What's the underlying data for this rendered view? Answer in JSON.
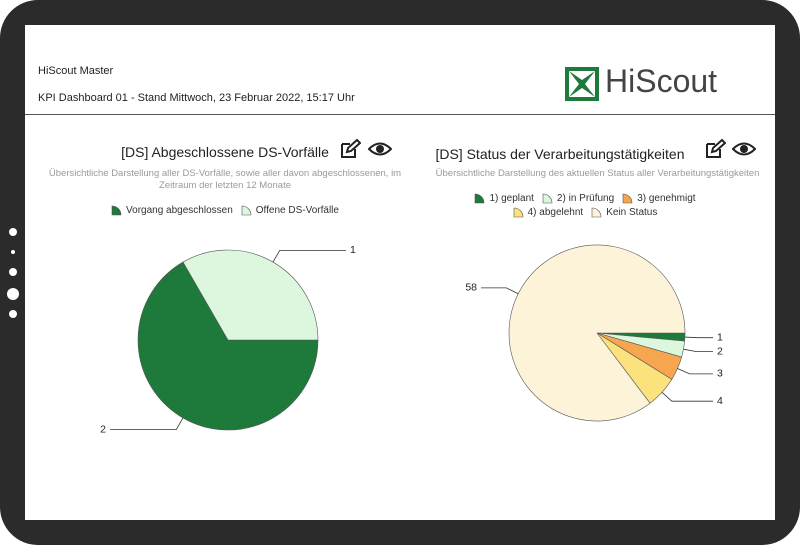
{
  "header": {
    "app": "HiScout Master",
    "subtitle": "KPI Dashboard 01 - Stand Mittwoch, 23 Februar 2022, 15:17 Uhr",
    "logo": "HiScout"
  },
  "chart_data": [
    {
      "type": "pie",
      "title": "[DS] Abgeschlossene DS-Vorfälle",
      "subtitle": "Übersichtliche Darstellung aller DS-Vorfälle, sowie aller davon abgeschlossenen, im Zeitraum der letzten 12 Monate",
      "categories": [
        "Vorgang abgeschlossen",
        "Offene DS-Vorfälle"
      ],
      "values": [
        2,
        1
      ],
      "colors": [
        "#1d7a3b",
        "#dcf7de"
      ]
    },
    {
      "type": "pie",
      "title": "[DS] Status der Verarbeitungstätigkeiten",
      "subtitle": "Übersichtliche Darstellung des aktuellen Status aller Verarbeitungstätigkeiten",
      "categories": [
        "1) geplant",
        "2) in Prüfung",
        "3) genehmigt",
        "4) abgelehnt",
        "Kein Status"
      ],
      "values": [
        1,
        2,
        3,
        4,
        58
      ],
      "colors": [
        "#1d7a3b",
        "#dcf7de",
        "#f6a64e",
        "#fbe27c",
        "#fdf3d8"
      ]
    }
  ]
}
